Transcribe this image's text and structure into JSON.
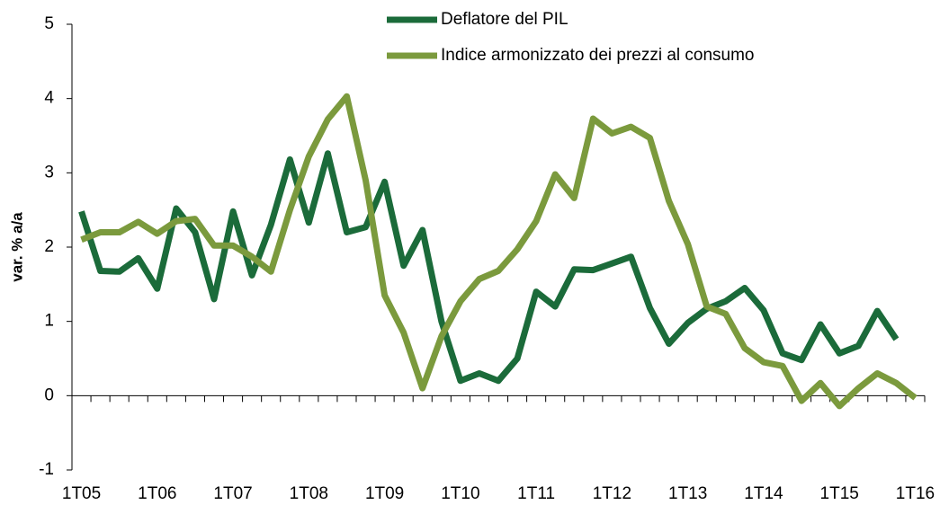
{
  "chart_data": {
    "type": "line",
    "y_label": "var. % a/a",
    "categories": [
      "1T05",
      null,
      null,
      null,
      "1T06",
      null,
      null,
      null,
      "1T07",
      null,
      null,
      null,
      "1T08",
      null,
      null,
      null,
      "1T09",
      null,
      null,
      null,
      "1T10",
      null,
      null,
      null,
      "1T11",
      null,
      null,
      null,
      "1T12",
      null,
      null,
      null,
      "1T13",
      null,
      null,
      null,
      "1T14",
      null,
      null,
      null,
      "1T15",
      null,
      null,
      null,
      "1T16"
    ],
    "series": [
      {
        "name": "Deflatore del PIL",
        "color": "#1b6b3a",
        "values": [
          2.48,
          1.68,
          1.67,
          1.85,
          1.44,
          2.52,
          2.2,
          1.3,
          2.48,
          1.62,
          2.3,
          3.18,
          2.33,
          3.26,
          2.2,
          2.27,
          2.88,
          1.75,
          2.23,
          1.0,
          0.2,
          0.3,
          0.2,
          0.5,
          1.4,
          1.2,
          1.7,
          1.69,
          1.78,
          1.87,
          1.18,
          0.7,
          0.98,
          1.17,
          1.27,
          1.45,
          1.15,
          0.57,
          0.48,
          0.96,
          0.57,
          0.67,
          1.14,
          0.76,
          null
        ]
      },
      {
        "name": "Indice armonizzato dei prezzi al consumo",
        "color": "#7b9a3d",
        "values": [
          2.1,
          2.2,
          2.2,
          2.34,
          2.18,
          2.35,
          2.38,
          2.02,
          2.02,
          1.87,
          1.67,
          2.5,
          3.22,
          3.72,
          4.03,
          2.9,
          1.35,
          0.85,
          0.1,
          0.8,
          1.27,
          1.57,
          1.68,
          1.97,
          2.35,
          2.98,
          2.66,
          3.73,
          3.53,
          3.62,
          3.47,
          2.62,
          2.04,
          1.2,
          1.1,
          0.64,
          0.45,
          0.4,
          -0.07,
          0.17,
          -0.14,
          0.1,
          0.3,
          0.17,
          -0.03
        ]
      }
    ],
    "ylim": [
      -1,
      5
    ],
    "yticks": [
      -1,
      0,
      1,
      2,
      3,
      4,
      5
    ],
    "legend": "top"
  }
}
